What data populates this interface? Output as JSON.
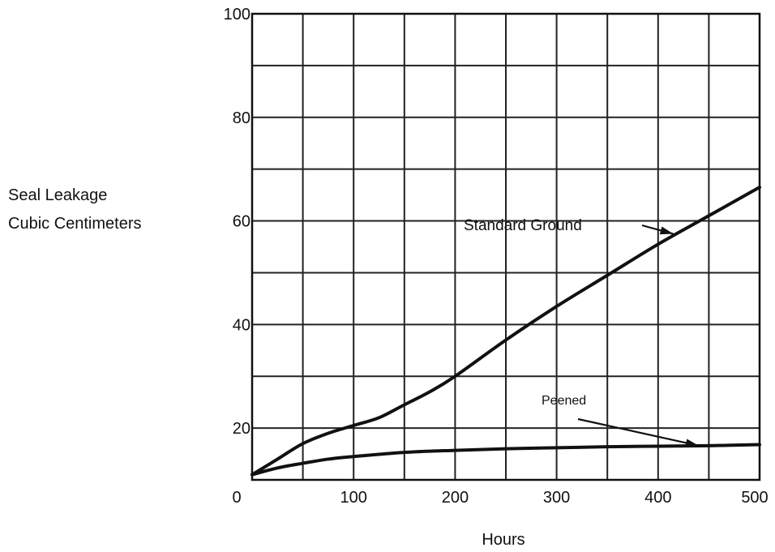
{
  "chart_data": {
    "type": "line",
    "title": "",
    "xlabel": "Hours",
    "ylabel_lines": [
      "Seal Leakage",
      "Cubic Centimeters"
    ],
    "xlim": [
      0,
      500
    ],
    "ylim": [
      10,
      100
    ],
    "x_ticks": [
      0,
      100,
      200,
      300,
      400,
      500
    ],
    "y_ticks": [
      20,
      40,
      60,
      80,
      100
    ],
    "grid": true,
    "grid_x_step": 50,
    "grid_y_step": 10,
    "series": [
      {
        "name": "Standard Ground",
        "x": [
          0,
          25,
          50,
          75,
          100,
          125,
          150,
          175,
          200,
          250,
          300,
          350,
          400,
          450,
          500
        ],
        "y": [
          11,
          14,
          17,
          19,
          20.5,
          22,
          24.5,
          27,
          30,
          37,
          43.5,
          49.5,
          55.5,
          61,
          66.5
        ]
      },
      {
        "name": "Peened",
        "x": [
          0,
          25,
          50,
          75,
          100,
          150,
          200,
          250,
          300,
          350,
          400,
          450,
          500
        ],
        "y": [
          11,
          12.3,
          13.2,
          14,
          14.5,
          15.3,
          15.7,
          16,
          16.2,
          16.4,
          16.5,
          16.6,
          16.8
        ]
      }
    ],
    "annotations": [
      {
        "text": "Standard Ground",
        "series": "Standard Ground",
        "points_to": [
          415,
          57.5
        ]
      },
      {
        "text": "Peened",
        "series": "Peened",
        "points_to": [
          440,
          16.6
        ]
      }
    ]
  }
}
